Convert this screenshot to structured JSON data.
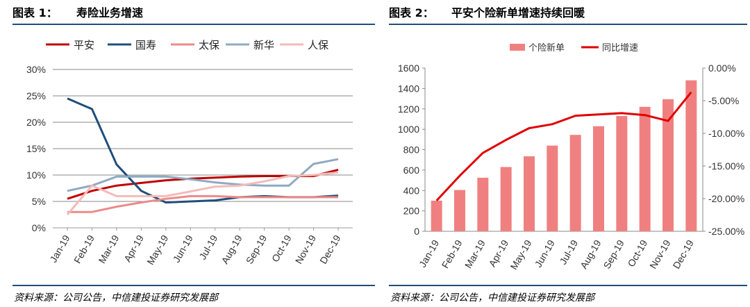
{
  "panel1": {
    "fig_num": "图表 1：",
    "fig_title": "寿险业务增速",
    "source": "资料来源：公司公告，中信建投证券研究发展部"
  },
  "panel2": {
    "fig_num": "图表 2：",
    "fig_title": "平安个险新单增速持续回暖",
    "source": "资料来源：公司公告，中信建投证券研究发展部"
  },
  "chart_data": [
    {
      "type": "line",
      "title": "寿险业务增速",
      "categories": [
        "Jan-19",
        "Feb-19",
        "Mar-19",
        "Apr-19",
        "May-19",
        "Jun-19",
        "Jul-19",
        "Aug-19",
        "Sep-19",
        "Oct-19",
        "Nov-19",
        "Dec-19"
      ],
      "ylim": [
        0,
        30
      ],
      "yticks": [
        "0%",
        "5%",
        "10%",
        "15%",
        "20%",
        "25%",
        "30%"
      ],
      "grid": true,
      "legend_position": "top",
      "series": [
        {
          "name": "平安",
          "color": "#c00000",
          "values": [
            5.5,
            7.0,
            8.0,
            8.5,
            9.0,
            9.3,
            9.5,
            9.7,
            9.8,
            9.8,
            9.8,
            11.0
          ]
        },
        {
          "name": "国寿",
          "color": "#1f4e79",
          "values": [
            24.5,
            22.5,
            12.0,
            7.0,
            4.8,
            5.0,
            5.2,
            5.8,
            6.0,
            5.8,
            5.8,
            6.1
          ]
        },
        {
          "name": "太保",
          "color": "#ec8a8a",
          "values": [
            3.0,
            3.0,
            4.0,
            4.8,
            5.5,
            6.0,
            6.0,
            5.8,
            5.8,
            5.8,
            5.8,
            5.8
          ]
        },
        {
          "name": "新华",
          "color": "#8eaac2",
          "values": [
            7.0,
            8.0,
            9.7,
            9.7,
            9.7,
            9.2,
            8.6,
            8.2,
            8.0,
            8.0,
            12.1,
            13.0
          ]
        },
        {
          "name": "人保",
          "color": "#f4baba",
          "values": [
            2.5,
            8.0,
            6.0,
            6.0,
            6.0,
            6.9,
            7.8,
            8.0,
            8.8,
            9.8,
            10.0,
            10.5
          ]
        }
      ]
    },
    {
      "type": "bar",
      "title": "平安个险新单增速持续回暖",
      "categories": [
        "Jan-19",
        "Feb-19",
        "Mar-19",
        "Apr-19",
        "May-19",
        "Jun-19",
        "Jul-19",
        "Aug-19",
        "Sep-19",
        "Oct-19",
        "Nov-19",
        "Dec-19"
      ],
      "ylim": [
        0,
        1600
      ],
      "yticks": [
        "0",
        "200",
        "400",
        "600",
        "800",
        "1000",
        "1200",
        "1400",
        "1600"
      ],
      "y2lim": [
        -25,
        0
      ],
      "y2ticks": [
        "0.00%",
        "-5.00%",
        "-10.00%",
        "-15.00%",
        "-20.00%",
        "-25.00%"
      ],
      "grid": false,
      "legend_position": "top",
      "series": [
        {
          "name": "个险新单",
          "type": "bar",
          "axis": "left",
          "color": "#f08080",
          "values": [
            300,
            405,
            525,
            630,
            735,
            840,
            945,
            1030,
            1130,
            1220,
            1295,
            1480
          ]
        },
        {
          "name": "同比增速",
          "type": "line",
          "axis": "right",
          "color": "#e00000",
          "values": [
            -20.3,
            -16.5,
            -13.0,
            -11.0,
            -9.2,
            -8.6,
            -7.3,
            -7.1,
            -6.9,
            -7.2,
            -8.1,
            -3.7
          ]
        }
      ]
    }
  ]
}
